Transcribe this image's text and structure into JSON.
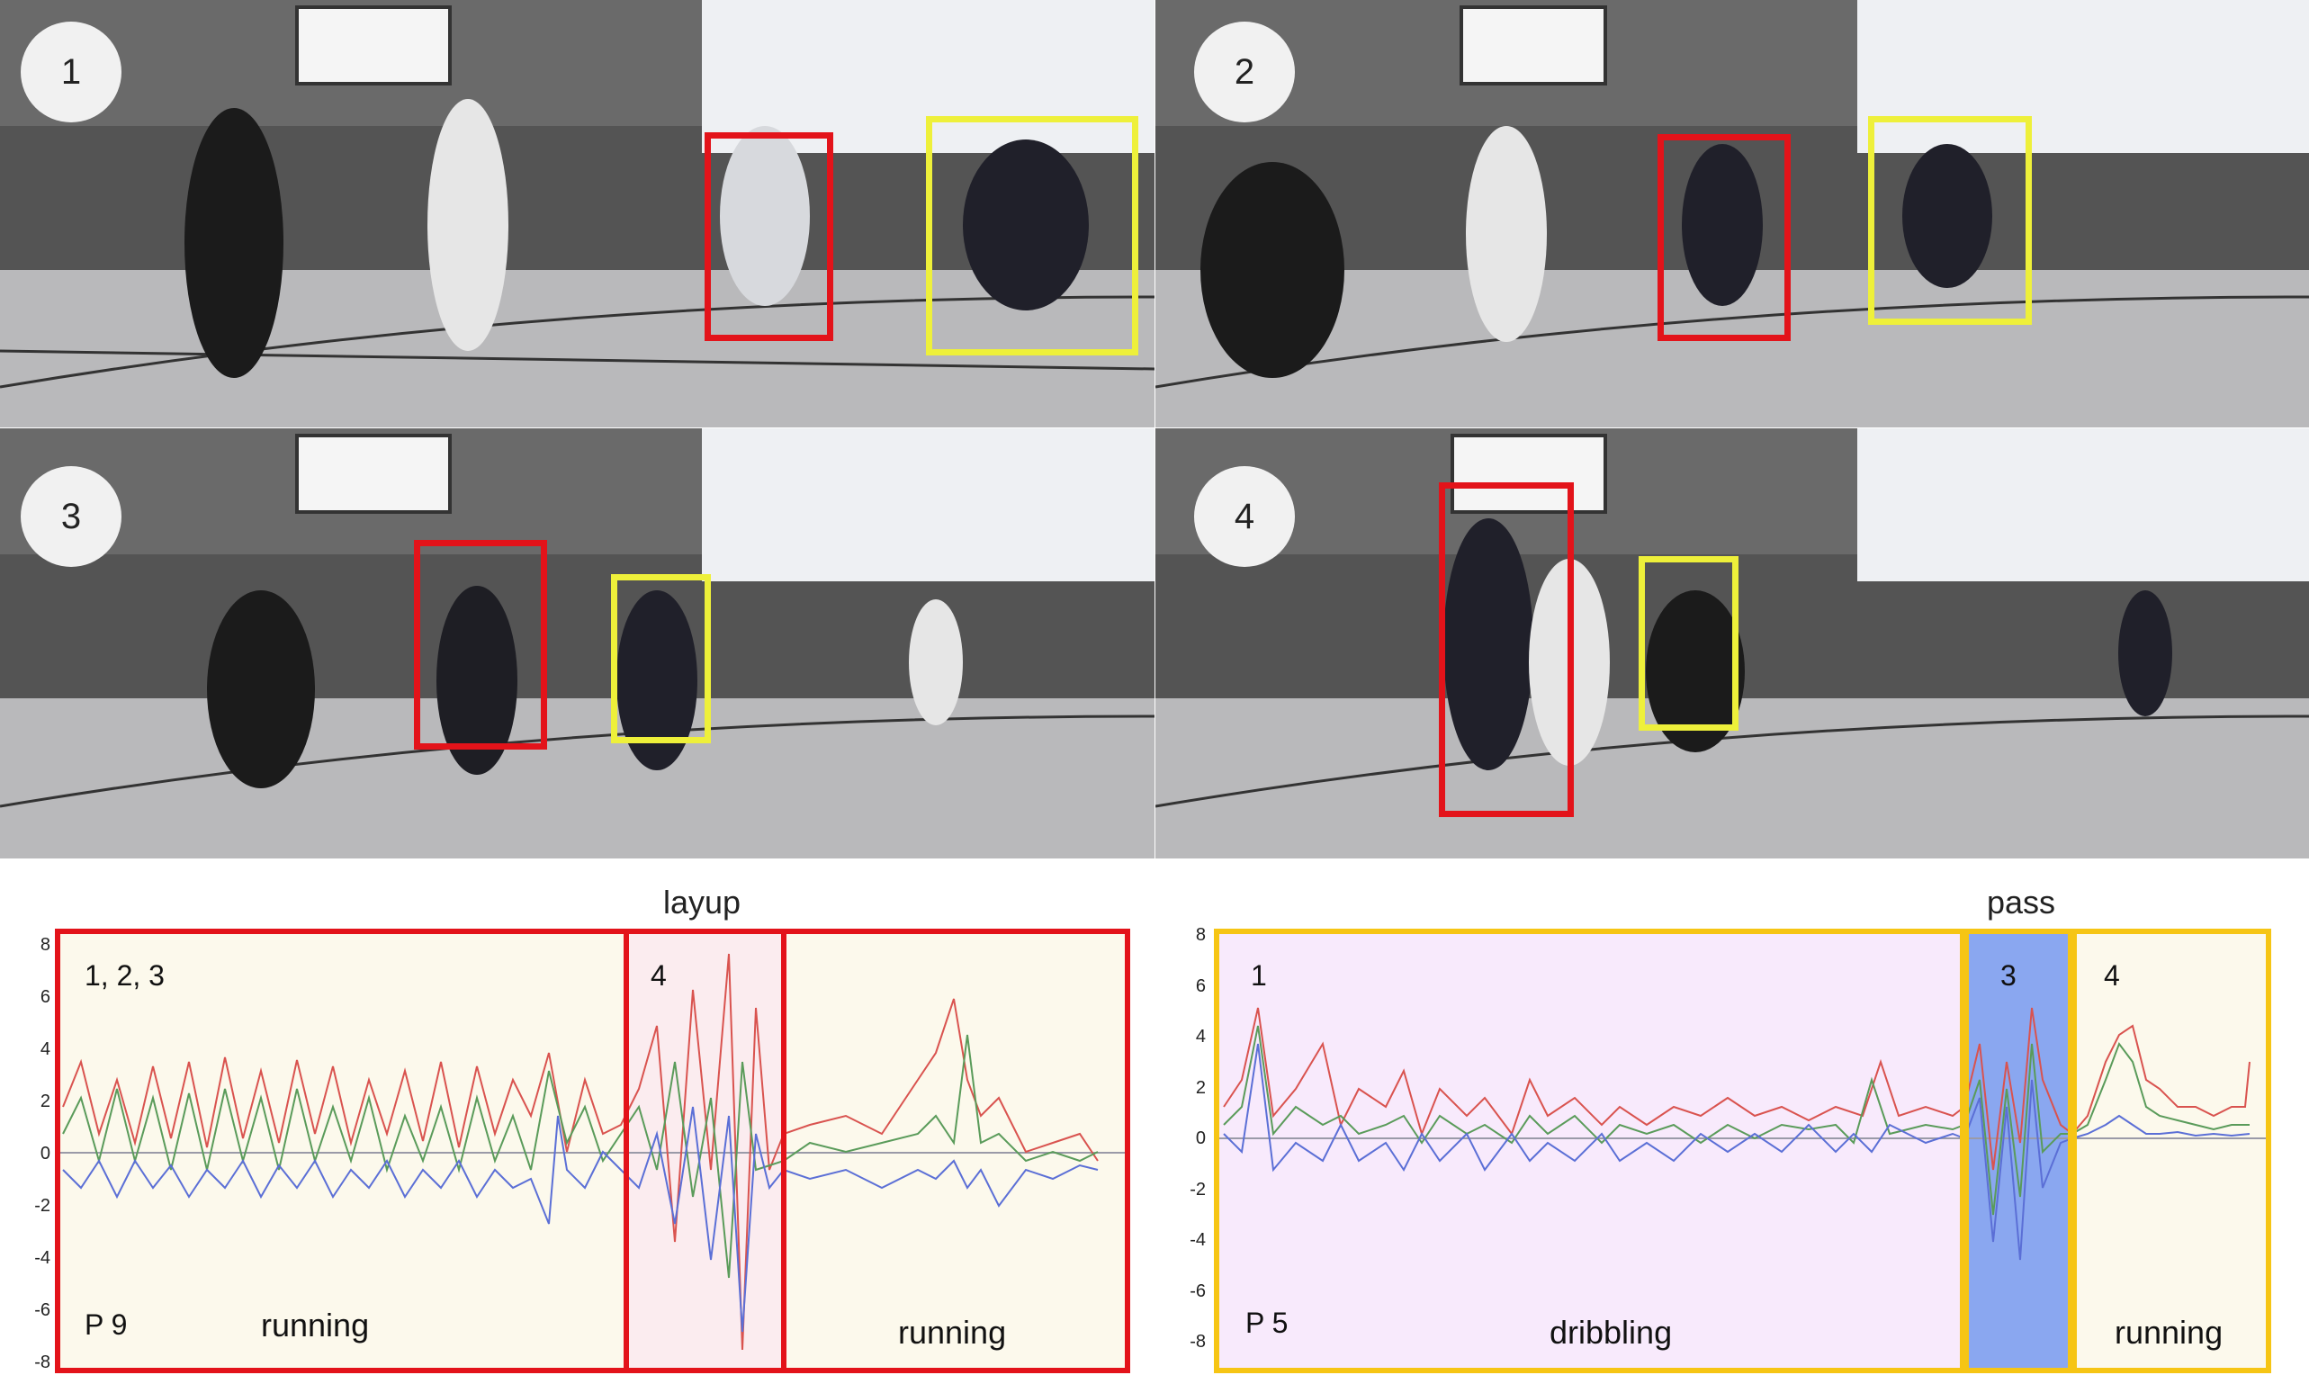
{
  "frames": [
    {
      "label": "1"
    },
    {
      "label": "2"
    },
    {
      "label": "3"
    },
    {
      "label": "4"
    }
  ],
  "colors": {
    "red_box": "#e3131a",
    "yellow_box": "#eef03a",
    "orange_box": "#f6c514",
    "pale_yellow_bg": "#fcf9ec",
    "pale_pink_bg": "#fbecef",
    "pale_violet_bg": "#f8eafc",
    "blue_bg": "#8aa7f0",
    "line_red": "#d9534f",
    "line_green": "#5a9b5a",
    "line_blue": "#5b6fd6"
  },
  "left_panel": {
    "title": "layup",
    "yticks": [
      "8",
      "6",
      "4",
      "2",
      "0",
      "-2",
      "-4",
      "-6",
      "-8"
    ],
    "segments": [
      {
        "number": "1, 2, 3",
        "activity": "running"
      },
      {
        "number": "4",
        "activity": ""
      },
      {
        "number": "",
        "activity": "running"
      }
    ],
    "player": "P 9"
  },
  "right_panel": {
    "title": "pass",
    "yticks": [
      "8",
      "6",
      "4",
      "2",
      "0",
      "-2",
      "-4",
      "-6",
      "-8"
    ],
    "segments": [
      {
        "number": "1",
        "activity": "dribbling"
      },
      {
        "number": "3",
        "activity": ""
      },
      {
        "number": "4",
        "activity": "running"
      }
    ],
    "player": "P 5"
  }
}
